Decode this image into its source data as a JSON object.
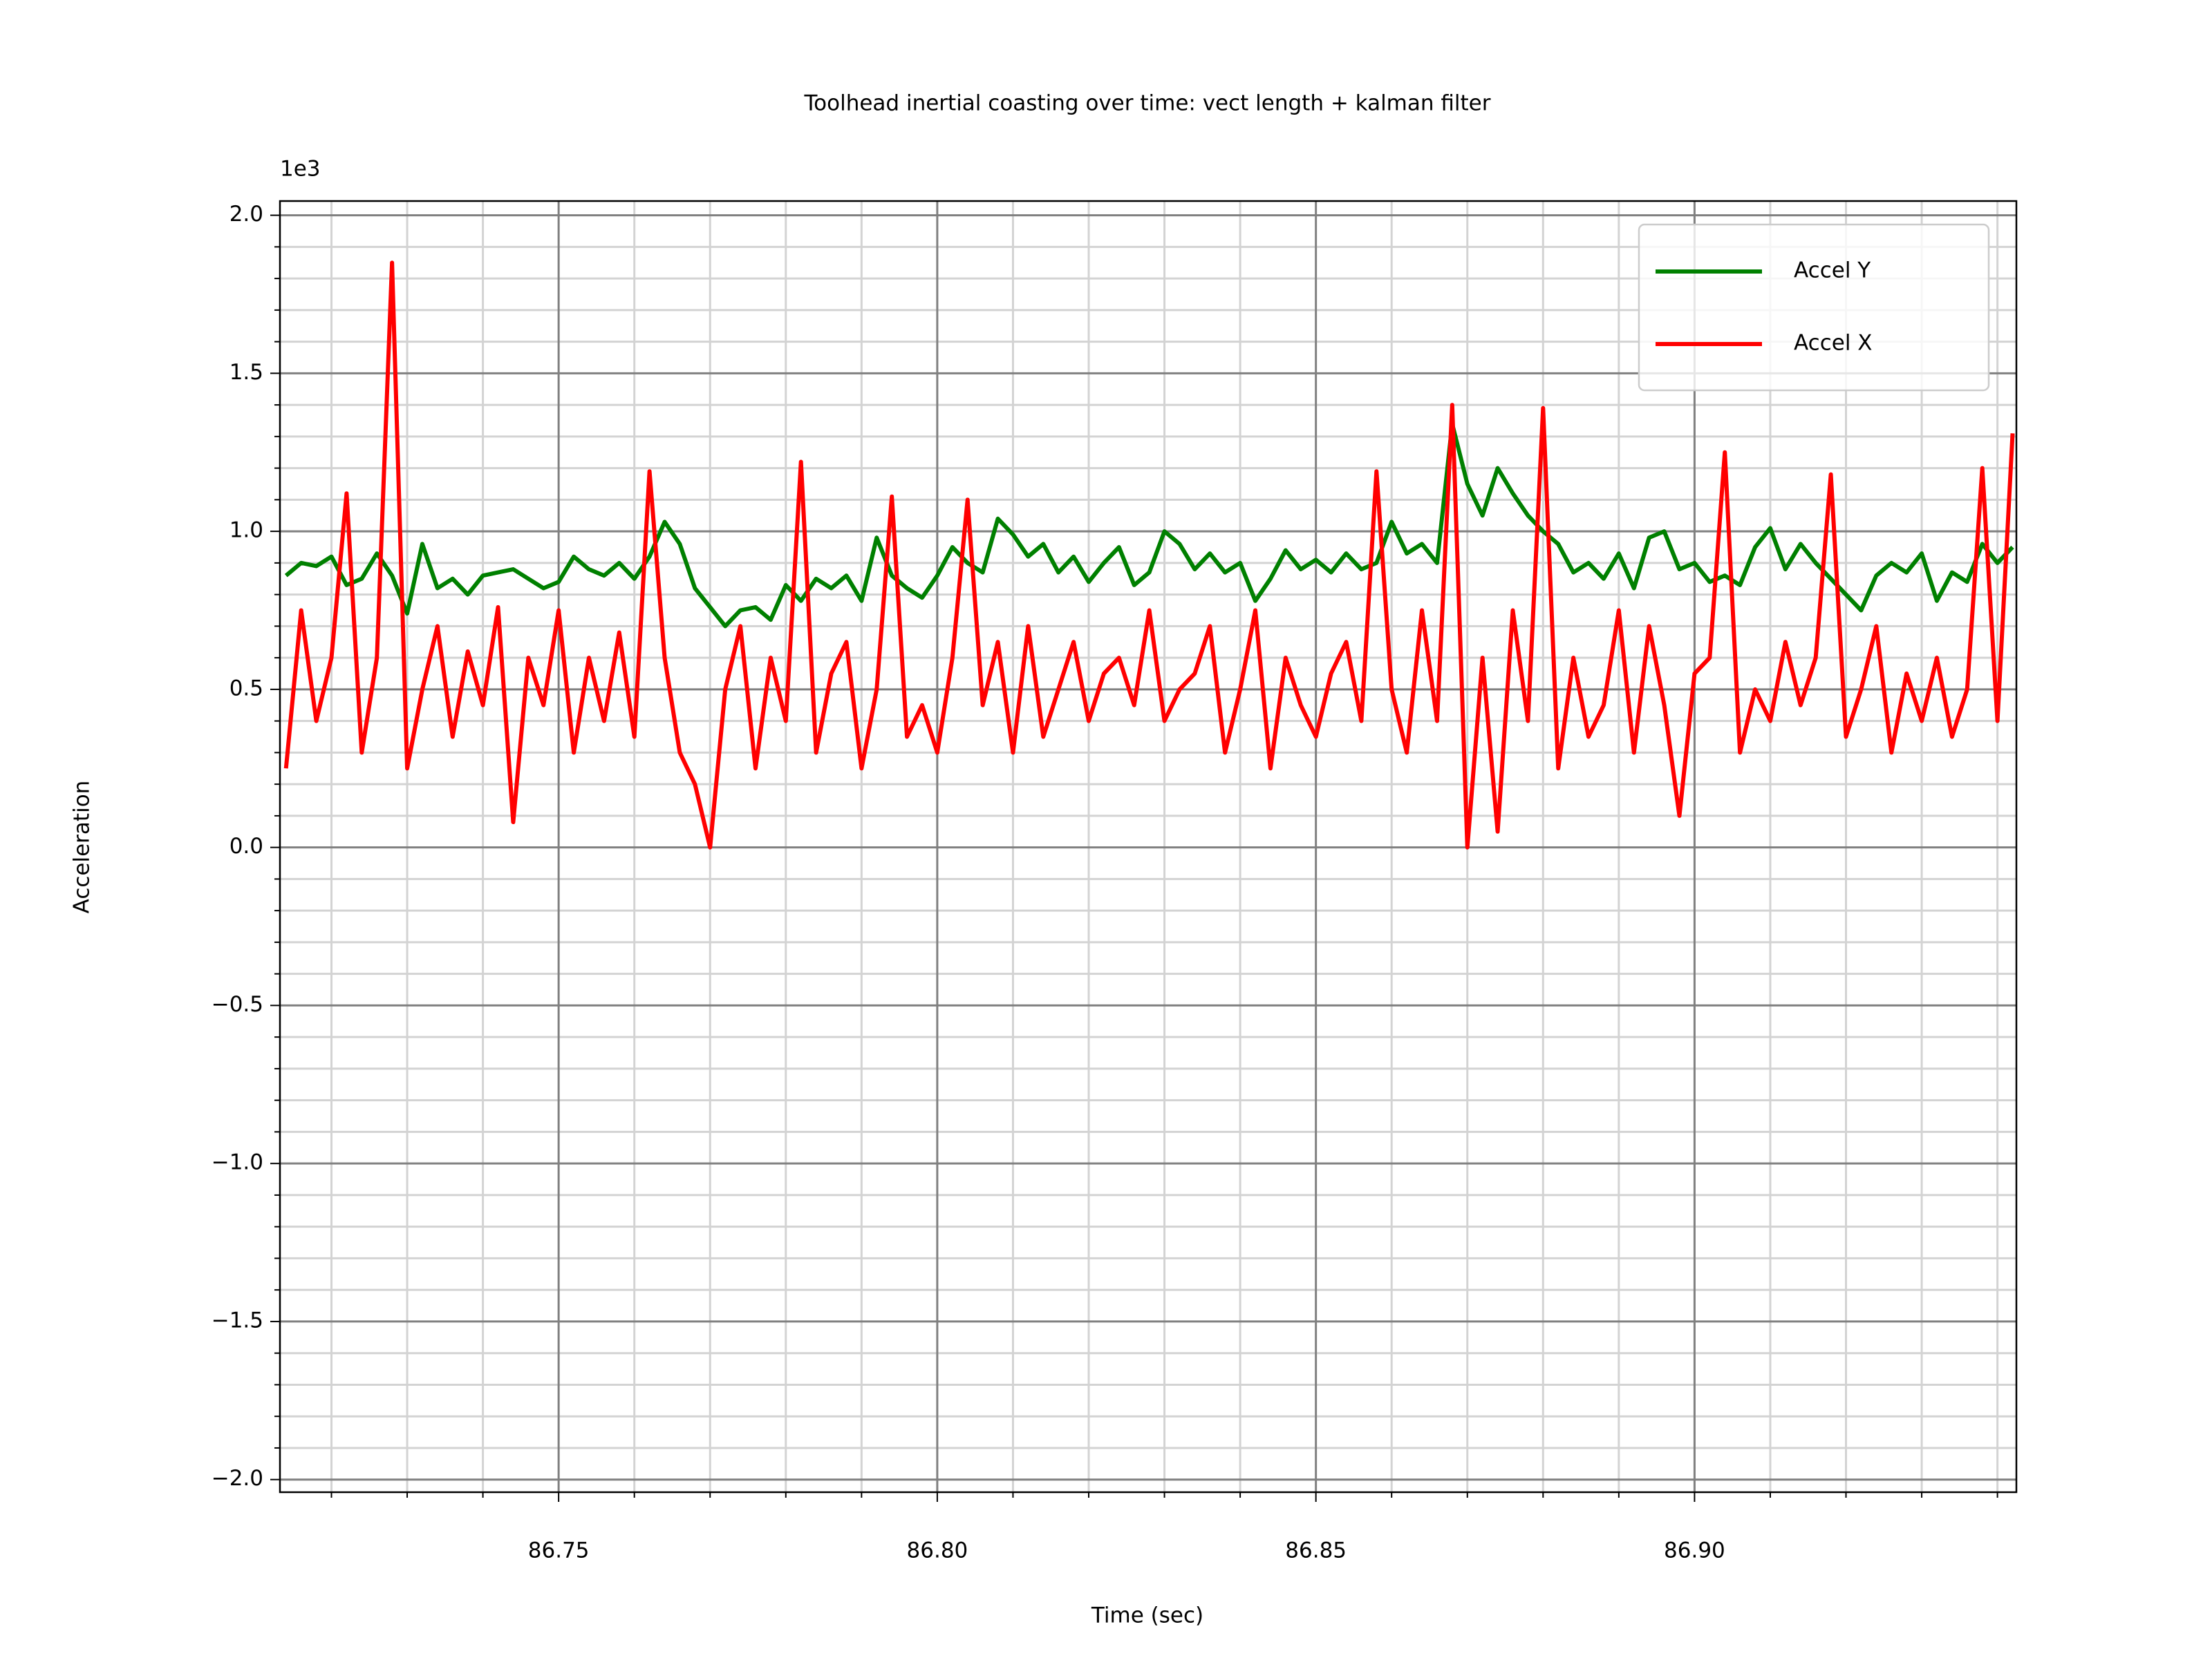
{
  "chart_data": {
    "type": "line",
    "title": "Toolhead inertial coasting over time: vect length + kalman filter",
    "xlabel": "Time (sec)",
    "ylabel": "Acceleration",
    "y_offset_text": "1e3",
    "x": [
      86.714,
      86.716,
      86.718,
      86.72,
      86.722,
      86.724,
      86.726,
      86.728,
      86.73,
      86.732,
      86.734,
      86.736,
      86.738,
      86.74,
      86.742,
      86.744,
      86.746,
      86.748,
      86.75,
      86.752,
      86.754,
      86.756,
      86.758,
      86.76,
      86.762,
      86.764,
      86.766,
      86.768,
      86.77,
      86.772,
      86.774,
      86.776,
      86.778,
      86.78,
      86.782,
      86.784,
      86.786,
      86.788,
      86.79,
      86.792,
      86.794,
      86.796,
      86.798,
      86.8,
      86.802,
      86.804,
      86.806,
      86.808,
      86.81,
      86.812,
      86.814,
      86.816,
      86.818,
      86.82,
      86.822,
      86.824,
      86.826,
      86.828,
      86.83,
      86.832,
      86.834,
      86.836,
      86.838,
      86.84,
      86.842,
      86.844,
      86.846,
      86.848,
      86.85,
      86.852,
      86.854,
      86.856,
      86.858,
      86.86,
      86.862,
      86.864,
      86.866,
      86.868,
      86.87,
      86.872,
      86.874,
      86.876,
      86.878,
      86.88,
      86.882,
      86.884,
      86.886,
      86.888,
      86.89,
      86.892,
      86.894,
      86.896,
      86.898,
      86.9,
      86.902,
      86.904,
      86.906,
      86.908,
      86.91,
      86.912,
      86.914,
      86.916,
      86.918,
      86.92,
      86.922,
      86.924,
      86.926,
      86.928,
      86.93,
      86.932,
      86.934,
      86.936,
      86.938,
      86.94,
      86.942
    ],
    "series": [
      {
        "name": "Accel Y",
        "color": "#008000",
        "values": [
          860,
          900,
          890,
          920,
          830,
          850,
          930,
          860,
          740,
          960,
          820,
          850,
          800,
          860,
          870,
          880,
          850,
          820,
          840,
          920,
          880,
          860,
          900,
          850,
          920,
          1030,
          960,
          820,
          760,
          700,
          750,
          760,
          720,
          830,
          780,
          850,
          820,
          860,
          780,
          980,
          860,
          820,
          790,
          860,
          950,
          900,
          870,
          1040,
          990,
          920,
          960,
          870,
          920,
          840,
          900,
          950,
          830,
          870,
          1000,
          960,
          880,
          930,
          870,
          900,
          780,
          850,
          940,
          880,
          910,
          870,
          930,
          880,
          900,
          1030,
          930,
          960,
          900,
          1340,
          1150,
          1050,
          1200,
          1120,
          1050,
          1000,
          960,
          870,
          900,
          850,
          930,
          820,
          980,
          1000,
          880,
          900,
          840,
          860,
          830,
          950,
          1010,
          880,
          960,
          900,
          850,
          800,
          750,
          860,
          900,
          870,
          930,
          780,
          870,
          840,
          960,
          900,
          950
        ]
      },
      {
        "name": "Accel X",
        "color": "#ff0000",
        "values": [
          250,
          750,
          400,
          600,
          1120,
          300,
          600,
          1850,
          250,
          500,
          700,
          350,
          620,
          450,
          760,
          80,
          600,
          450,
          750,
          300,
          600,
          400,
          680,
          350,
          1190,
          600,
          300,
          200,
          0,
          500,
          700,
          250,
          600,
          400,
          1220,
          300,
          550,
          650,
          250,
          500,
          1110,
          350,
          450,
          300,
          600,
          1100,
          450,
          650,
          300,
          700,
          350,
          500,
          650,
          400,
          550,
          600,
          450,
          750,
          400,
          500,
          550,
          700,
          300,
          500,
          750,
          250,
          600,
          450,
          350,
          550,
          650,
          400,
          1190,
          500,
          300,
          750,
          400,
          1400,
          0,
          600,
          50,
          750,
          400,
          1390,
          250,
          600,
          350,
          450,
          750,
          300,
          700,
          450,
          100,
          550,
          600,
          1250,
          300,
          500,
          400,
          650,
          450,
          600,
          1180,
          350,
          500,
          700,
          300,
          550,
          400,
          600,
          350,
          500,
          1200,
          400,
          1310
        ]
      }
    ],
    "xlim": [
      86.7132,
      86.9425
    ],
    "ylim": [
      -2040,
      2045
    ],
    "xticks": [
      86.75,
      {
        "value": 86.8,
        "label": "86.80"
      },
      86.85,
      {
        "value": 86.9,
        "label": "86.90"
      }
    ],
    "xminorticks": [
      86.72,
      86.73,
      86.74,
      86.76,
      86.77,
      86.78,
      86.79,
      86.81,
      86.82,
      86.83,
      86.84,
      86.86,
      86.87,
      86.88,
      86.89,
      86.91,
      86.92,
      86.93,
      86.94
    ],
    "yticks": [
      {
        "value": -2000,
        "label": "−2.0"
      },
      {
        "value": -1500,
        "label": "−1.5"
      },
      {
        "value": -1000,
        "label": "−1.0"
      },
      {
        "value": -500,
        "label": "−0.5"
      },
      {
        "value": 0,
        "label": "0.0"
      },
      {
        "value": 500,
        "label": "0.5"
      },
      {
        "value": 1000,
        "label": "1.0"
      },
      {
        "value": 1500,
        "label": "1.5"
      },
      {
        "value": 2000,
        "label": "2.0"
      }
    ],
    "yminorticks": [
      -1900,
      -1800,
      -1700,
      -1600,
      -1400,
      -1300,
      -1200,
      -1100,
      -900,
      -800,
      -700,
      -600,
      -400,
      -300,
      -200,
      -100,
      100,
      200,
      300,
      400,
      600,
      700,
      800,
      900,
      1100,
      1200,
      1300,
      1400,
      1600,
      1700,
      1800,
      1900
    ],
    "grid": true,
    "minor_grid": true,
    "legend": "upper right"
  }
}
